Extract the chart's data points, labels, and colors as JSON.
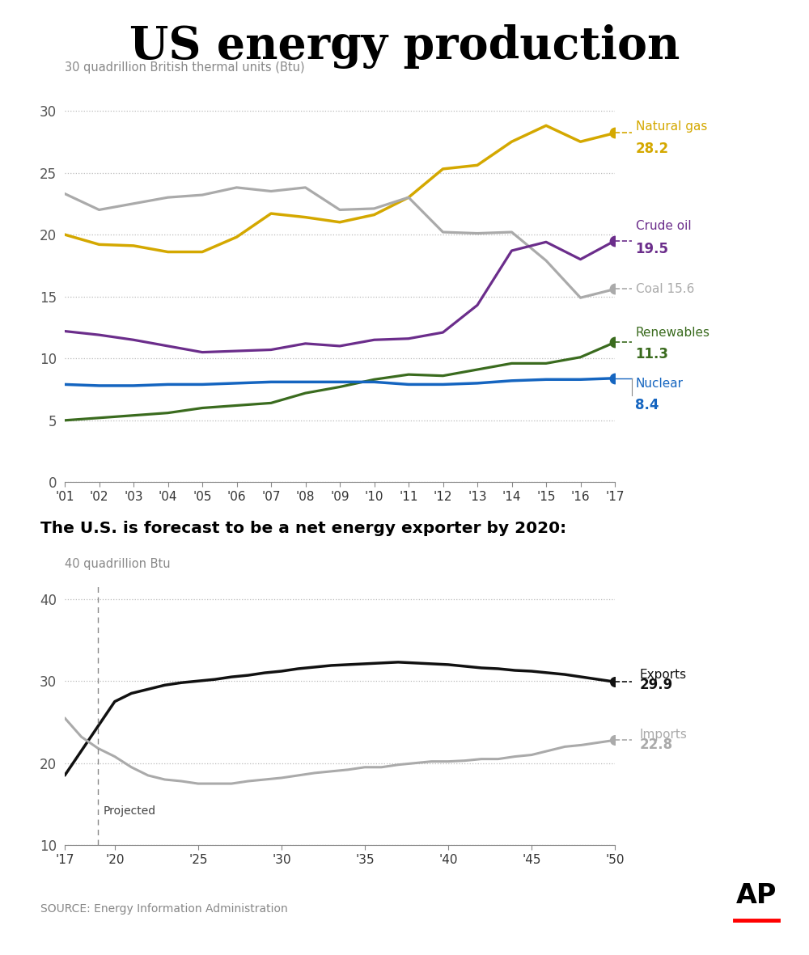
{
  "title": "US energy production",
  "subtitle1": "The U.S. is forecast to be a net energy exporter by 2020:",
  "source": "SOURCE: Energy Information Administration",
  "chart1": {
    "ylabel": "30 quadrillion British thermal units (Btu)",
    "years": [
      2001,
      2002,
      2003,
      2004,
      2005,
      2006,
      2007,
      2008,
      2009,
      2010,
      2011,
      2012,
      2013,
      2014,
      2015,
      2016,
      2017
    ],
    "natural_gas": [
      20.0,
      19.2,
      19.1,
      18.6,
      18.6,
      19.8,
      21.7,
      21.4,
      21.0,
      21.6,
      23.0,
      25.3,
      25.6,
      27.5,
      28.8,
      27.5,
      28.2
    ],
    "crude_oil": [
      12.2,
      11.9,
      11.5,
      11.0,
      10.5,
      10.6,
      10.7,
      11.2,
      11.0,
      11.5,
      11.6,
      12.1,
      14.3,
      18.7,
      19.4,
      18.0,
      19.5
    ],
    "coal": [
      23.3,
      22.0,
      22.5,
      23.0,
      23.2,
      23.8,
      23.5,
      23.8,
      22.0,
      22.1,
      23.0,
      20.2,
      20.1,
      20.2,
      17.9,
      14.9,
      15.6
    ],
    "renewables": [
      5.0,
      5.2,
      5.4,
      5.6,
      6.0,
      6.2,
      6.4,
      7.2,
      7.7,
      8.3,
      8.7,
      8.6,
      9.1,
      9.6,
      9.6,
      10.1,
      11.3
    ],
    "nuclear": [
      7.9,
      7.8,
      7.8,
      7.9,
      7.9,
      8.0,
      8.1,
      8.1,
      8.1,
      8.1,
      7.9,
      7.9,
      8.0,
      8.2,
      8.3,
      8.3,
      8.4
    ],
    "nat_gas_color": "#D4A800",
    "crude_oil_color": "#6B2D8B",
    "coal_color": "#AAAAAA",
    "renewables_color": "#3A6B1E",
    "nuclear_color": "#1565C0",
    "ylim": [
      0,
      32
    ],
    "yticks": [
      0,
      5,
      10,
      15,
      20,
      25,
      30
    ],
    "xtick_labels": [
      "'01",
      "'02",
      "'03",
      "'04",
      "'05",
      "'06",
      "'07",
      "'08",
      "'09",
      "'10",
      "'11",
      "'12",
      "'13",
      "'14",
      "'15",
      "'16",
      "'17"
    ]
  },
  "chart2": {
    "ylabel": "40 quadrillion Btu",
    "years": [
      2017,
      2018,
      2019,
      2020,
      2021,
      2022,
      2023,
      2024,
      2025,
      2026,
      2027,
      2028,
      2029,
      2030,
      2031,
      2032,
      2033,
      2034,
      2035,
      2036,
      2037,
      2038,
      2039,
      2040,
      2041,
      2042,
      2043,
      2044,
      2045,
      2046,
      2047,
      2048,
      2049,
      2050
    ],
    "exports": [
      18.5,
      21.5,
      24.5,
      27.5,
      28.5,
      29.0,
      29.5,
      29.8,
      30.0,
      30.2,
      30.5,
      30.7,
      31.0,
      31.2,
      31.5,
      31.7,
      31.9,
      32.0,
      32.1,
      32.2,
      32.3,
      32.2,
      32.1,
      32.0,
      31.8,
      31.6,
      31.5,
      31.3,
      31.2,
      31.0,
      30.8,
      30.5,
      30.2,
      29.9
    ],
    "imports": [
      25.5,
      23.2,
      21.8,
      20.8,
      19.5,
      18.5,
      18.0,
      17.8,
      17.5,
      17.5,
      17.5,
      17.8,
      18.0,
      18.2,
      18.5,
      18.8,
      19.0,
      19.2,
      19.5,
      19.5,
      19.8,
      20.0,
      20.2,
      20.2,
      20.3,
      20.5,
      20.5,
      20.8,
      21.0,
      21.5,
      22.0,
      22.2,
      22.5,
      22.8
    ],
    "exports_color": "#111111",
    "imports_color": "#AAAAAA",
    "projected_year": 2019,
    "ylim": [
      10,
      42
    ],
    "yticks": [
      10,
      20,
      30,
      40
    ],
    "xticks": [
      2017,
      2020,
      2025,
      2030,
      2035,
      2040,
      2045,
      2050
    ],
    "xlabels": [
      "'17",
      "'20",
      "'25",
      "'30",
      "'35",
      "'40",
      "'45",
      "'50"
    ]
  }
}
